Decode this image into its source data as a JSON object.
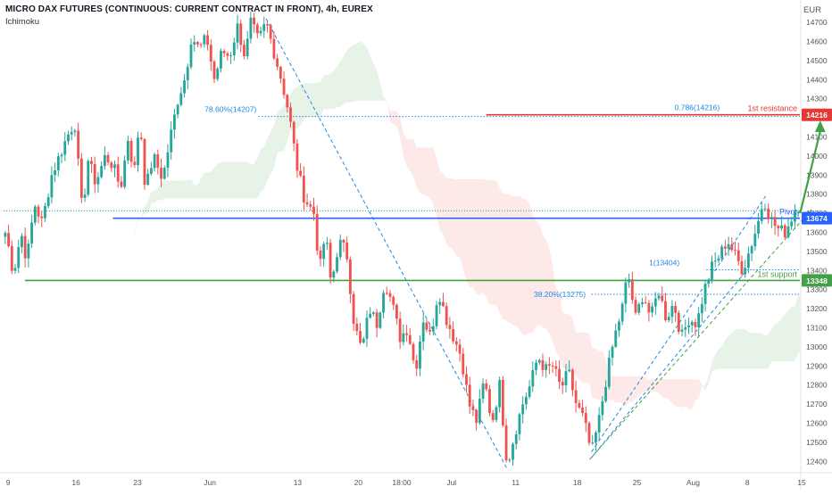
{
  "header": {
    "title": "MICRO DAX FUTURES (CONTINUOUS: CURRENT CONTRACT IN FRONT), 4h, EUREX",
    "indicator": "Ichimoku",
    "currency": "EUR"
  },
  "chart_data": {
    "type": "candlestick",
    "title": "MICRO DAX FUTURES (CONTINUOUS: CURRENT CONTRACT IN FRONT), 4h, EUREX",
    "indicator": "Ichimoku",
    "y_unit": "EUR",
    "ylim": [
      12350,
      14780
    ],
    "y_ticks": [
      12400,
      12500,
      12600,
      12700,
      12800,
      12900,
      13000,
      13100,
      13200,
      13300,
      13400,
      13500,
      13600,
      13700,
      13800,
      13900,
      14000,
      14100,
      14200,
      14300,
      14400,
      14500,
      14600,
      14700
    ],
    "x_tick_labels": [
      "9",
      "16",
      "23",
      "Jun",
      "13",
      "20",
      "18:00",
      "Jul",
      "11",
      "18",
      "25",
      "Aug",
      "8",
      "15"
    ],
    "x_tick_bars": [
      5,
      80,
      148,
      228,
      325,
      392,
      440,
      495,
      566,
      634,
      700,
      762,
      822,
      882
    ],
    "n_bars": 240,
    "colors": {
      "up": "#26a69a",
      "down": "#ef5350",
      "resistance": "#e53935",
      "pivot": "#2962ff",
      "support": "#43a047",
      "fib": "#1e88e5",
      "cloud_bull": "#43a047",
      "cloud_bear": "#ef5350"
    },
    "levels": [
      {
        "name": "1st resistance",
        "value": 14216,
        "color": "#e53935",
        "tag": "14216"
      },
      {
        "name": "Pivot",
        "value": 13674,
        "color": "#2962ff",
        "tag": "13674"
      },
      {
        "name": "1st support",
        "value": 13348,
        "color": "#43a047",
        "tag": "13348"
      }
    ],
    "fib_labels": [
      {
        "text": "78.60%(14207)",
        "value": 14207
      },
      {
        "text": "0.786(14216)",
        "value": 14216
      },
      {
        "text": "1(13404)",
        "value": 13404
      },
      {
        "text": "38.20%(13275)",
        "value": 13275
      }
    ],
    "last_price": 13707,
    "price_path": [
      [
        0,
        13700
      ],
      [
        8,
        13550
      ],
      [
        14,
        13380
      ],
      [
        22,
        13600
      ],
      [
        28,
        13450
      ],
      [
        36,
        13750
      ],
      [
        44,
        13650
      ],
      [
        54,
        13900
      ],
      [
        62,
        14000
      ],
      [
        70,
        14100
      ],
      [
        78,
        14180
      ],
      [
        86,
        13700
      ],
      [
        92,
        13980
      ],
      [
        100,
        13860
      ],
      [
        110,
        14000
      ],
      [
        118,
        13950
      ],
      [
        126,
        13830
      ],
      [
        134,
        14100
      ],
      [
        140,
        13900
      ],
      [
        146,
        14200
      ],
      [
        152,
        13820
      ],
      [
        160,
        14000
      ],
      [
        170,
        13880
      ],
      [
        178,
        14100
      ],
      [
        186,
        14300
      ],
      [
        194,
        14420
      ],
      [
        200,
        14630
      ],
      [
        208,
        14560
      ],
      [
        216,
        14620
      ],
      [
        224,
        14400
      ],
      [
        232,
        14550
      ],
      [
        240,
        14520
      ],
      [
        248,
        14680
      ],
      [
        256,
        14520
      ],
      [
        262,
        14700
      ],
      [
        270,
        14600
      ],
      [
        278,
        14700
      ],
      [
        286,
        14550
      ],
      [
        294,
        14400
      ],
      [
        302,
        14220
      ],
      [
        310,
        13950
      ],
      [
        318,
        13780
      ],
      [
        328,
        13700
      ],
      [
        334,
        13400
      ],
      [
        340,
        13600
      ],
      [
        346,
        13320
      ],
      [
        354,
        13550
      ],
      [
        362,
        13500
      ],
      [
        370,
        13120
      ],
      [
        378,
        12980
      ],
      [
        386,
        13200
      ],
      [
        394,
        13120
      ],
      [
        402,
        13350
      ],
      [
        410,
        13220
      ],
      [
        418,
        13050
      ],
      [
        426,
        13100
      ],
      [
        434,
        12870
      ],
      [
        442,
        13150
      ],
      [
        450,
        13050
      ],
      [
        458,
        13300
      ],
      [
        466,
        13150
      ],
      [
        474,
        13050
      ],
      [
        482,
        12950
      ],
      [
        490,
        12700
      ],
      [
        498,
        12610
      ],
      [
        506,
        12830
      ],
      [
        514,
        12600
      ],
      [
        522,
        12800
      ],
      [
        530,
        12380
      ],
      [
        538,
        12550
      ],
      [
        546,
        12700
      ],
      [
        554,
        12800
      ],
      [
        562,
        12950
      ],
      [
        570,
        12880
      ],
      [
        578,
        12900
      ],
      [
        586,
        12780
      ],
      [
        594,
        12870
      ],
      [
        602,
        12700
      ],
      [
        610,
        12620
      ],
      [
        618,
        12440
      ],
      [
        626,
        12620
      ],
      [
        634,
        12850
      ],
      [
        642,
        13050
      ],
      [
        650,
        13200
      ],
      [
        656,
        13390
      ],
      [
        664,
        13150
      ],
      [
        672,
        13280
      ],
      [
        680,
        13150
      ],
      [
        688,
        13300
      ],
      [
        696,
        13150
      ],
      [
        704,
        13230
      ],
      [
        712,
        13050
      ],
      [
        720,
        13150
      ],
      [
        728,
        13120
      ],
      [
        736,
        13300
      ],
      [
        744,
        13420
      ],
      [
        752,
        13480
      ],
      [
        760,
        13560
      ],
      [
        768,
        13480
      ],
      [
        776,
        13400
      ],
      [
        784,
        13520
      ],
      [
        792,
        13650
      ],
      [
        798,
        13780
      ],
      [
        804,
        13680
      ],
      [
        812,
        13620
      ],
      [
        820,
        13600
      ],
      [
        830,
        13707
      ]
    ]
  }
}
